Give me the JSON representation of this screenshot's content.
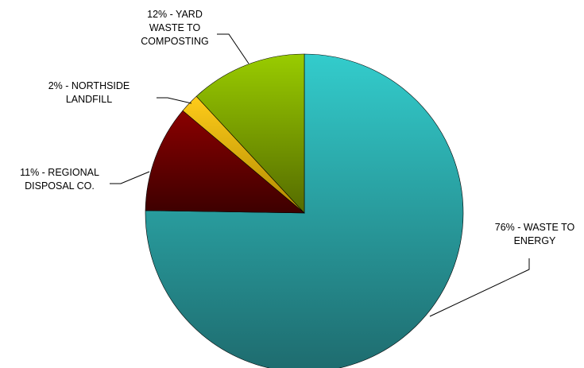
{
  "chart_data": {
    "type": "pie",
    "title": "",
    "start_angle_deg": 0,
    "direction": "clockwise",
    "legend": "none",
    "slices": [
      {
        "label_lines": [
          "76% - WASTE TO",
          "ENERGY"
        ],
        "percent": 76,
        "name": "WASTE TO ENERGY",
        "color_light": "#33cccc",
        "color_dark": "#1e6b6e"
      },
      {
        "label_lines": [
          "11% - REGIONAL",
          "DISPOSAL CO."
        ],
        "percent": 11,
        "name": "REGIONAL DISPOSAL CO.",
        "color_light": "#8a0000",
        "color_dark": "#3d0000"
      },
      {
        "label_lines": [
          "2% - NORTHSIDE",
          "LANDFILL"
        ],
        "percent": 2,
        "name": "NORTHSIDE LANDFILL",
        "color_light": "#ffcc1a",
        "color_dark": "#b08a00"
      },
      {
        "label_lines": [
          "12% - YARD",
          "WASTE TO",
          "COMPOSTING"
        ],
        "percent": 12,
        "name": "YARD WASTE TO COMPOSTING",
        "color_light": "#99cc00",
        "color_dark": "#556b00"
      }
    ]
  }
}
